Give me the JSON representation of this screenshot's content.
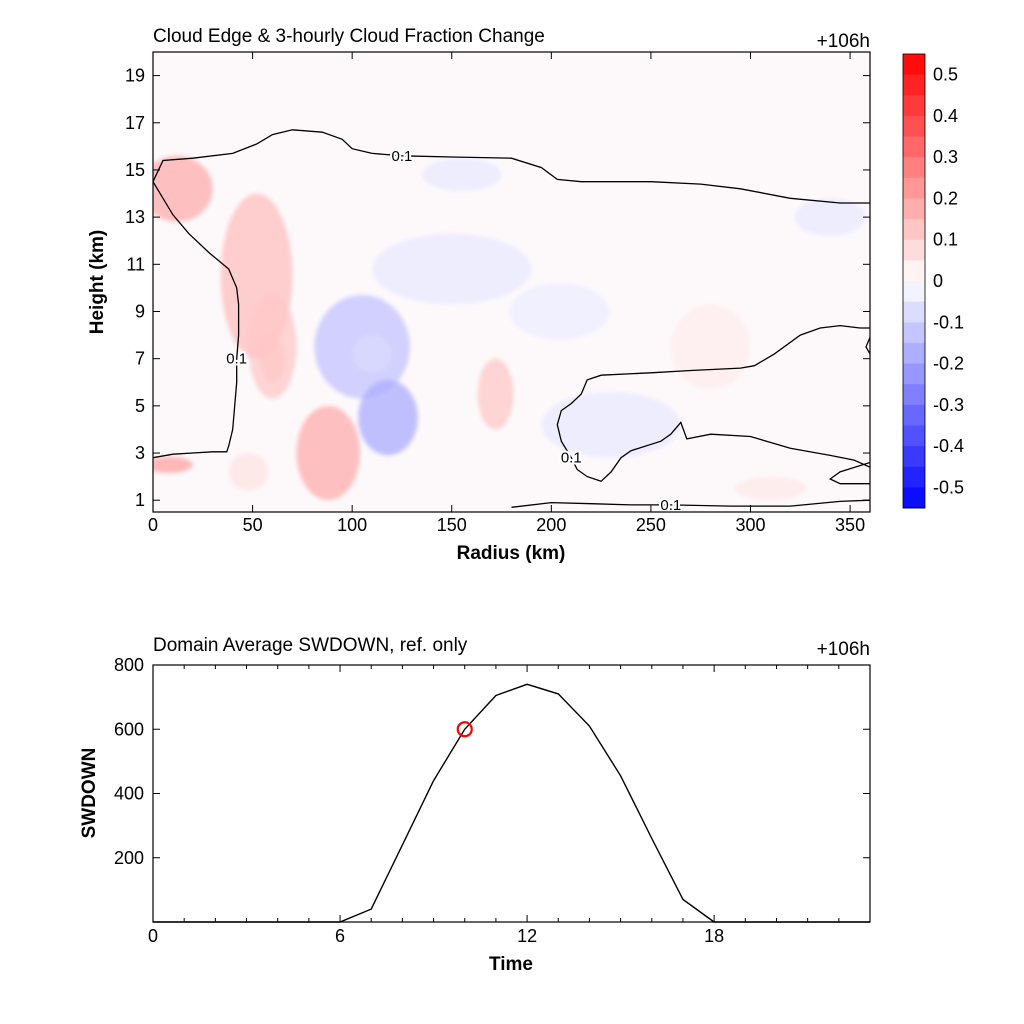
{
  "chart_data": [
    {
      "type": "heatmap",
      "title": "Cloud Edge & 3-hourly Cloud Fraction Change",
      "time_label": "+106h",
      "xlabel": "Radius (km)",
      "ylabel": "Height (km)",
      "xlim": [
        0,
        360
      ],
      "ylim": [
        0.5,
        20
      ],
      "x_ticks": [
        "0",
        "50",
        "100",
        "150",
        "200",
        "250",
        "300",
        "350"
      ],
      "y_ticks": [
        "1",
        "3",
        "5",
        "7",
        "9",
        "11",
        "13",
        "15",
        "17",
        "19"
      ],
      "colorbar": {
        "labels": [
          "0.5",
          "0.4",
          "0.3",
          "0.2",
          "0.1",
          "0",
          "-0.1",
          "-0.2",
          "-0.3",
          "-0.4",
          "-0.5"
        ],
        "levels": [
          0.55,
          0.5,
          0.45,
          0.4,
          0.35,
          0.3,
          0.25,
          0.2,
          0.15,
          0.1,
          0.05,
          0,
          -0.05,
          -0.1,
          -0.15,
          -0.2,
          -0.25,
          -0.3,
          -0.35,
          -0.4,
          -0.45,
          -0.5,
          -0.55
        ],
        "positive_color": "#ff0000",
        "negative_color": "#0000ff"
      },
      "anomalies": [
        {
          "x": 12,
          "y": 14.2,
          "rx": 18,
          "ry": 1.4,
          "value": 0.18
        },
        {
          "x": 52,
          "y": 10.5,
          "rx": 18,
          "ry": 3.5,
          "value": 0.14
        },
        {
          "x": 60,
          "y": 7.5,
          "rx": 12,
          "ry": 2.2,
          "value": 0.12
        },
        {
          "x": 60,
          "y": 7.0,
          "rx": 6,
          "ry": 1.0,
          "value": 0.12
        },
        {
          "x": 88,
          "y": 3.0,
          "rx": 16,
          "ry": 2.0,
          "value": 0.18
        },
        {
          "x": 8,
          "y": 2.5,
          "rx": 12,
          "ry": 0.35,
          "value": 0.2
        },
        {
          "x": 172,
          "y": 5.5,
          "rx": 9,
          "ry": 1.5,
          "value": 0.12
        },
        {
          "x": 48,
          "y": 2.2,
          "rx": 10,
          "ry": 0.8,
          "value": 0.06
        },
        {
          "x": 280,
          "y": 7.5,
          "rx": 20,
          "ry": 1.8,
          "value": 0.04
        },
        {
          "x": 310,
          "y": 1.5,
          "rx": 18,
          "ry": 0.5,
          "value": 0.05
        },
        {
          "x": 105,
          "y": 7.5,
          "rx": 24,
          "ry": 2.2,
          "value": -0.13
        },
        {
          "x": 110,
          "y": 7.2,
          "rx": 10,
          "ry": 0.8,
          "value": -0.08
        },
        {
          "x": 118,
          "y": 4.5,
          "rx": 15,
          "ry": 1.6,
          "value": -0.18
        },
        {
          "x": 150,
          "y": 10.8,
          "rx": 40,
          "ry": 1.5,
          "value": -0.05
        },
        {
          "x": 155,
          "y": 14.8,
          "rx": 20,
          "ry": 0.7,
          "value": -0.05
        },
        {
          "x": 230,
          "y": 4.2,
          "rx": 35,
          "ry": 1.4,
          "value": -0.05
        },
        {
          "x": 340,
          "y": 13.0,
          "rx": 18,
          "ry": 0.8,
          "value": -0.05
        },
        {
          "x": 204,
          "y": 9.0,
          "rx": 25,
          "ry": 1.2,
          "value": -0.04
        }
      ],
      "contours": [
        {
          "label": "0.1",
          "points": [
            [
              0,
              14.5
            ],
            [
              5,
              15.4
            ],
            [
              20,
              15.5
            ],
            [
              40,
              15.7
            ],
            [
              52,
              16.1
            ],
            [
              60,
              16.5
            ],
            [
              70,
              16.7
            ],
            [
              85,
              16.6
            ],
            [
              95,
              16.3
            ],
            [
              100,
              15.9
            ],
            [
              110,
              15.7
            ],
            [
              125,
              15.6
            ],
            [
              150,
              15.55
            ],
            [
              180,
              15.5
            ],
            [
              195,
              15.1
            ],
            [
              203,
              14.6
            ],
            [
              215,
              14.5
            ],
            [
              250,
              14.5
            ],
            [
              275,
              14.4
            ],
            [
              295,
              14.2
            ],
            [
              320,
              13.8
            ],
            [
              345,
              13.6
            ],
            [
              360,
              13.6
            ]
          ]
        },
        {
          "label": "0.1",
          "points": [
            [
              0,
              14.5
            ],
            [
              5,
              13.8
            ],
            [
              10,
              13.1
            ],
            [
              18,
              12.3
            ],
            [
              28,
              11.5
            ],
            [
              38,
              10.8
            ],
            [
              42,
              10.0
            ],
            [
              43,
              9.3
            ],
            [
              43,
              8.0
            ],
            [
              42,
              7.0
            ],
            [
              42,
              6.0
            ],
            [
              41,
              5.0
            ],
            [
              40,
              4.0
            ],
            [
              38,
              3.3
            ],
            [
              37,
              3.05
            ],
            [
              30,
              3.05
            ],
            [
              20,
              3.0
            ],
            [
              10,
              2.95
            ],
            [
              0,
              2.8
            ]
          ]
        },
        {
          "label": "0.1",
          "points": [
            [
              180,
              0.7
            ],
            [
              200,
              0.9
            ],
            [
              220,
              0.85
            ],
            [
              240,
              0.8
            ],
            [
              260,
              0.8
            ],
            [
              290,
              0.75
            ],
            [
              320,
              0.75
            ],
            [
              345,
              0.95
            ],
            [
              360,
              1.0
            ]
          ]
        },
        {
          "label": "0.1",
          "points": [
            [
              360,
              8.3
            ],
            [
              355,
              8.3
            ],
            [
              345,
              8.4
            ],
            [
              335,
              8.3
            ],
            [
              325,
              8.0
            ],
            [
              312,
              7.2
            ],
            [
              302,
              6.7
            ],
            [
              295,
              6.6
            ],
            [
              270,
              6.5
            ],
            [
              250,
              6.4
            ],
            [
              225,
              6.3
            ],
            [
              218,
              6.1
            ],
            [
              215,
              5.5
            ],
            [
              210,
              5.1
            ],
            [
              205,
              4.8
            ],
            [
              203,
              4.2
            ],
            [
              205,
              3.5
            ],
            [
              210,
              2.8
            ],
            [
              213,
              2.3
            ],
            [
              218,
              2.0
            ],
            [
              225,
              1.8
            ],
            [
              230,
              2.2
            ],
            [
              235,
              2.8
            ],
            [
              240,
              3.1
            ],
            [
              255,
              3.5
            ],
            [
              260,
              3.8
            ],
            [
              265,
              4.3
            ],
            [
              268,
              3.6
            ],
            [
              280,
              3.8
            ],
            [
              300,
              3.7
            ],
            [
              320,
              3.2
            ],
            [
              340,
              2.9
            ],
            [
              352,
              2.7
            ],
            [
              360,
              2.4
            ]
          ]
        },
        {
          "label": "",
          "points": [
            [
              360,
              2.6
            ],
            [
              345,
              2.2
            ],
            [
              340,
              1.9
            ],
            [
              345,
              1.7
            ],
            [
              360,
              1.7
            ]
          ]
        },
        {
          "label": "",
          "points": [
            [
              360,
              7.2
            ],
            [
              358,
              7.5
            ],
            [
              360,
              7.9
            ]
          ]
        }
      ]
    },
    {
      "type": "line",
      "title": "Domain Average SWDOWN, ref. only",
      "time_label": "+106h",
      "xlabel": "Time",
      "ylabel": "SWDOWN",
      "xlim": [
        0,
        23
      ],
      "ylim": [
        0,
        800
      ],
      "x_ticks": [
        "0",
        "6",
        "12",
        "18"
      ],
      "y_ticks": [
        "200",
        "400",
        "600",
        "800"
      ],
      "x": [
        0,
        1,
        2,
        3,
        4,
        5,
        6,
        7,
        8,
        9,
        10,
        11,
        12,
        13,
        14,
        15,
        16,
        17,
        18,
        19,
        20,
        21,
        22,
        23
      ],
      "values": [
        0,
        0,
        0,
        0,
        0,
        0,
        0,
        40,
        240,
        440,
        600,
        705,
        740,
        710,
        610,
        455,
        260,
        70,
        0,
        0,
        0,
        0,
        0,
        0
      ],
      "marker": {
        "x": 10,
        "y": 600,
        "color": "#ff0000"
      }
    }
  ]
}
